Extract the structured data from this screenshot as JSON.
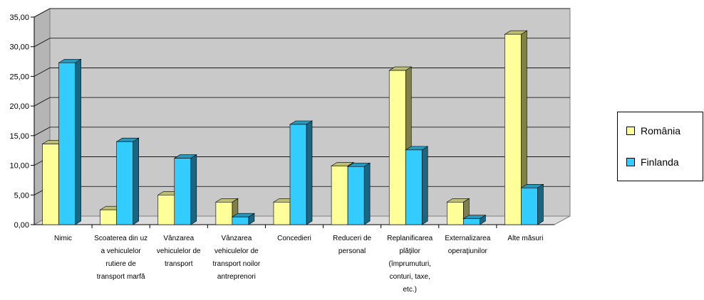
{
  "chart_data": {
    "type": "bar",
    "categories": [
      [
        "Nimic"
      ],
      [
        "Scoaterea din uz",
        "a vehiculelor",
        "rutiere de",
        "transport marfă"
      ],
      [
        "Vânzarea",
        "vehiculelor de",
        "transport"
      ],
      [
        "Vânzarea",
        "vehiculelor de",
        "transport noilor",
        "antreprenori"
      ],
      [
        "Concedieri"
      ],
      [
        "Reduceri de",
        "personal"
      ],
      [
        "Replanificarea",
        "plăţilor",
        "(împrumuturi,",
        "conturi, taxe,",
        "etc.)"
      ],
      [
        "Externalizarea",
        "operaţiunilor"
      ],
      [
        "Alte măsuri"
      ]
    ],
    "series": [
      {
        "name": "România",
        "values": [
          13.6,
          2.5,
          5.0,
          3.8,
          3.8,
          9.9,
          26.0,
          3.8,
          32.1
        ]
      },
      {
        "name": "Finlanda",
        "values": [
          27.3,
          14.0,
          11.2,
          1.3,
          16.9,
          9.8,
          12.6,
          1.0,
          6.2
        ]
      }
    ],
    "yticks": [
      "0,00",
      "5,00",
      "10,00",
      "15,00",
      "20,00",
      "25,00",
      "30,00",
      "35,00"
    ],
    "ylim": [
      0,
      35
    ],
    "grid": true,
    "legend_position": "right",
    "colors": {
      "România": "#FFFF99",
      "Finlanda": "#33CCFF"
    }
  }
}
